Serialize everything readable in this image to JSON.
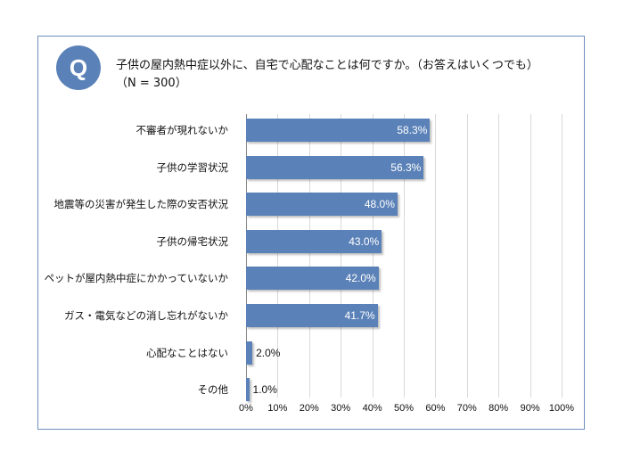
{
  "header": {
    "q_badge": "Q",
    "title": "子供の屋内熱中症以外に、自宅で心配なことは何ですか。（お答えはいくつでも）",
    "subtitle": "（N = 300）"
  },
  "colors": {
    "bar": "#5b82b8",
    "frame": "#6f8fbf"
  },
  "chart_data": {
    "type": "bar",
    "orientation": "horizontal",
    "title": "子供の屋内熱中症以外に、自宅で心配なことは何ですか。（お答えはいくつでも）",
    "subtitle": "（N = 300）",
    "categories": [
      "不審者が現れないか",
      "子供の学習状況",
      "地震等の災害が発生した際の安否状況",
      "子供の帰宅状況",
      "ペットが屋内熱中症にかかっていないか",
      "ガス・電気などの消し忘れがないか",
      "心配なことはない",
      "その他"
    ],
    "values": [
      58.3,
      56.3,
      48.0,
      43.0,
      42.0,
      41.7,
      2.0,
      1.0
    ],
    "value_labels": [
      "58.3%",
      "56.3%",
      "48.0%",
      "43.0%",
      "42.0%",
      "41.7%",
      "2.0%",
      "1.0%"
    ],
    "xlim": [
      0,
      100
    ],
    "xticks": [
      "0%",
      "10%",
      "20%",
      "30%",
      "40%",
      "50%",
      "60%",
      "70%",
      "80%",
      "90%",
      "100%"
    ],
    "grid": true,
    "xlabel": "",
    "ylabel": ""
  }
}
